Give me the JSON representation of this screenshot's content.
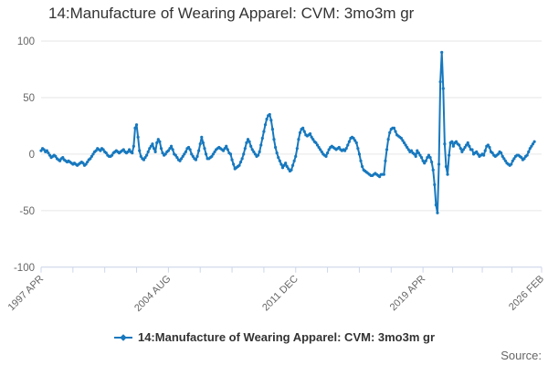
{
  "title": "14:Manufacture of Wearing Apparel: CVM: 3mo3m gr",
  "source_label": "Source:",
  "colors": {
    "line": "#1778be",
    "grid": "#e6e6e6",
    "axis": "#ccd6eb",
    "tick_text": "#666666",
    "title_text": "#333333"
  },
  "legend": {
    "items": [
      {
        "label": "14:Manufacture of Wearing Apparel: CVM: 3mo3m gr",
        "color": "#1778be"
      }
    ]
  },
  "chart_data": {
    "type": "line",
    "title": "14:Manufacture of Wearing Apparel: CVM: 3mo3m gr",
    "xlabel": "",
    "ylabel": "",
    "grid": "horizontal",
    "legend_position": "bottom",
    "y_axis": {
      "range": [
        -100,
        100
      ],
      "ticks": [
        100,
        50,
        0,
        -50,
        -100
      ]
    },
    "x_axis": {
      "start": "1997 APR",
      "end": "2026 FEB",
      "total_months": 346,
      "major_tick_months": [
        0,
        88,
        176,
        264,
        346
      ],
      "major_tick_labels": [
        "1997 APR",
        "2004 AUG",
        "2011 DEC",
        "2019 APR",
        "2026 FEB"
      ],
      "minor_ticks_between": 3
    },
    "series": [
      {
        "name": "14:Manufacture of Wearing Apparel: CVM: 3mo3m gr",
        "color": "#1778be",
        "frequency": "monthly",
        "start_month": "1997 APR",
        "values": [
          3,
          5,
          4,
          2,
          3,
          1,
          -1,
          -3,
          -2,
          -1,
          -2,
          -4,
          -5,
          -6,
          -4,
          -3,
          -5,
          -6,
          -7,
          -6,
          -7,
          -8,
          -9,
          -8,
          -9,
          -10,
          -9,
          -8,
          -7,
          -8,
          -10,
          -9,
          -7,
          -5,
          -4,
          -2,
          0,
          2,
          3,
          5,
          4,
          3,
          5,
          4,
          2,
          1,
          -1,
          -2,
          -2,
          -1,
          1,
          2,
          3,
          2,
          1,
          2,
          3,
          4,
          2,
          1,
          2,
          4,
          2,
          1,
          7,
          23,
          26,
          15,
          3,
          -2,
          -4,
          -5,
          -3,
          -1,
          2,
          5,
          7,
          9,
          5,
          2,
          10,
          13,
          11,
          5,
          1,
          -1,
          0,
          2,
          3,
          5,
          7,
          4,
          0,
          -1,
          -3,
          -5,
          -6,
          -4,
          -2,
          0,
          2,
          5,
          6,
          4,
          0,
          -2,
          -4,
          -5,
          -2,
          3,
          9,
          15,
          10,
          5,
          0,
          -4,
          -4,
          -3,
          -2,
          0,
          2,
          4,
          5,
          6,
          5,
          4,
          3,
          5,
          7,
          4,
          1,
          0,
          -5,
          -9,
          -13,
          -12,
          -11,
          -10,
          -7,
          -4,
          0,
          5,
          10,
          13,
          11,
          7,
          4,
          2,
          0,
          -2,
          -1,
          2,
          8,
          14,
          20,
          26,
          31,
          34,
          35,
          30,
          22,
          13,
          6,
          1,
          -3,
          -6,
          -9,
          -12,
          -10,
          -8,
          -11,
          -13,
          -15,
          -14,
          -10,
          -6,
          -2,
          5,
          13,
          19,
          22,
          23,
          20,
          17,
          16,
          17,
          18,
          15,
          13,
          11,
          10,
          8,
          6,
          4,
          2,
          0,
          -1,
          -2,
          1,
          4,
          6,
          7,
          6,
          5,
          4,
          5,
          6,
          4,
          3,
          4,
          3,
          5,
          8,
          11,
          14,
          15,
          14,
          12,
          10,
          5,
          0,
          -6,
          -11,
          -14,
          -15,
          -16,
          -17,
          -18,
          -19,
          -19,
          -18,
          -17,
          -18,
          -19,
          -20,
          -18,
          -18,
          -18,
          -6,
          4,
          13,
          19,
          22,
          23,
          23,
          20,
          17,
          16,
          15,
          14,
          12,
          10,
          8,
          6,
          4,
          2,
          3,
          1,
          0,
          -2,
          3,
          1,
          -1,
          -3,
          -6,
          -8,
          -6,
          -3,
          -1,
          -3,
          -7,
          -14,
          -27,
          -45,
          -52,
          -9,
          64,
          90,
          58,
          9,
          -11,
          -18,
          -1,
          10,
          11,
          7,
          10,
          11,
          9,
          8,
          5,
          2,
          4,
          6,
          8,
          10,
          7,
          4,
          4,
          0,
          1,
          2,
          0,
          -2,
          -1,
          0,
          -1,
          3,
          7,
          8,
          6,
          2,
          1,
          -1,
          -2,
          -1,
          0,
          2,
          1,
          -2,
          -4,
          -6,
          -8,
          -9,
          -10,
          -9,
          -6,
          -4,
          -2,
          -1,
          -1,
          -2,
          -3,
          -5,
          -4,
          -2,
          -1,
          2,
          5,
          7,
          9,
          11
        ]
      }
    ]
  }
}
